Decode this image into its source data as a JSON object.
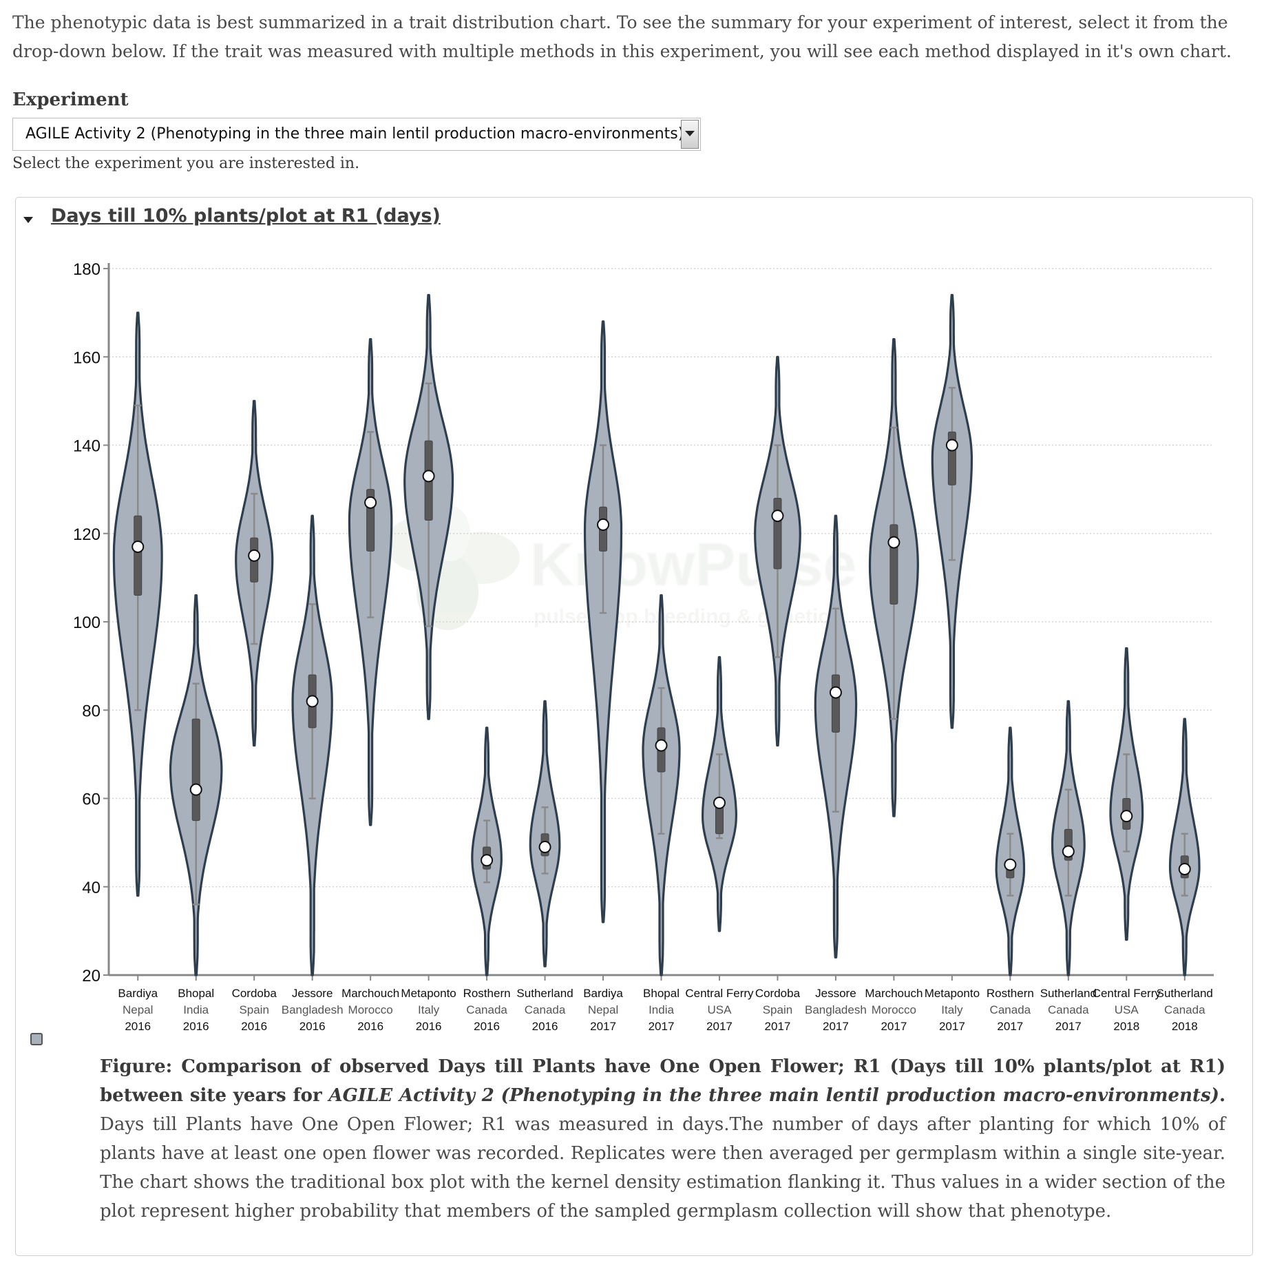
{
  "intro_text": "The phenotypic data is best summarized in a trait distribution chart. To see the summary for your experiment of interest, select it from the drop-down below. If the trait was measured with multiple methods in this experiment, you will see each method displayed in it's own chart.",
  "experiment": {
    "label": "Experiment",
    "selected": "AGILE Activity 2 (Phenotyping in the three main lentil production macro-environments)",
    "help": "Select the experiment you are insterested in."
  },
  "panel": {
    "title": "Days till 10% plants/plot at R1 (days)"
  },
  "watermark": {
    "title": "KnowPulse",
    "subtitle": "pulse crop breeding & genetics"
  },
  "colors": {
    "violin_fill": "#a9b1bd",
    "violin_stroke": "#2f3e4e",
    "box": "#595959"
  },
  "chart_data": {
    "type": "violin",
    "ylim": [
      20,
      180
    ],
    "yticks": [
      20,
      40,
      60,
      80,
      100,
      120,
      140,
      160,
      180
    ],
    "grid": true,
    "groups": [
      {
        "site": "Bardiya",
        "country": "Nepal",
        "year": "2016",
        "min": 38,
        "max": 170,
        "q1": 106,
        "q3": 124,
        "median": 117,
        "w_low": 80,
        "w_high": 149
      },
      {
        "site": "Bhopal",
        "country": "India",
        "year": "2016",
        "min": 20,
        "max": 106,
        "q1": 55,
        "q3": 78,
        "median": 62,
        "w_low": 36,
        "w_high": 86
      },
      {
        "site": "Cordoba",
        "country": "Spain",
        "year": "2016",
        "min": 72,
        "max": 150,
        "q1": 109,
        "q3": 119,
        "median": 115,
        "w_low": 95,
        "w_high": 129
      },
      {
        "site": "Jessore",
        "country": "Bangladesh",
        "year": "2016",
        "min": 20,
        "max": 124,
        "q1": 76,
        "q3": 88,
        "median": 82,
        "w_low": 60,
        "w_high": 104
      },
      {
        "site": "Marchouch",
        "country": "Morocco",
        "year": "2016",
        "min": 54,
        "max": 164,
        "q1": 116,
        "q3": 130,
        "median": 127,
        "w_low": 101,
        "w_high": 143
      },
      {
        "site": "Metaponto",
        "country": "Italy",
        "year": "2016",
        "min": 78,
        "max": 174,
        "q1": 123,
        "q3": 141,
        "median": 133,
        "w_low": 99,
        "w_high": 154
      },
      {
        "site": "Rosthern",
        "country": "Canada",
        "year": "2016",
        "min": 20,
        "max": 76,
        "q1": 44,
        "q3": 49,
        "median": 46,
        "w_low": 41,
        "w_high": 55
      },
      {
        "site": "Sutherland",
        "country": "Canada",
        "year": "2016",
        "min": 22,
        "max": 82,
        "q1": 47,
        "q3": 52,
        "median": 49,
        "w_low": 43,
        "w_high": 58
      },
      {
        "site": "Bardiya",
        "country": "Nepal",
        "year": "2017",
        "min": 32,
        "max": 168,
        "q1": 116,
        "q3": 126,
        "median": 122,
        "w_low": 102,
        "w_high": 140
      },
      {
        "site": "Bhopal",
        "country": "India",
        "year": "2017",
        "min": 20,
        "max": 106,
        "q1": 66,
        "q3": 76,
        "median": 72,
        "w_low": 52,
        "w_high": 85
      },
      {
        "site": "Central Ferry",
        "country": "USA",
        "year": "2017",
        "min": 30,
        "max": 92,
        "q1": 52,
        "q3": 60,
        "median": 59,
        "w_low": 51,
        "w_high": 70
      },
      {
        "site": "Cordoba",
        "country": "Spain",
        "year": "2017",
        "min": 72,
        "max": 160,
        "q1": 112,
        "q3": 128,
        "median": 124,
        "w_low": 92,
        "w_high": 140
      },
      {
        "site": "Jessore",
        "country": "Bangladesh",
        "year": "2017",
        "min": 24,
        "max": 124,
        "q1": 75,
        "q3": 88,
        "median": 84,
        "w_low": 57,
        "w_high": 103
      },
      {
        "site": "Marchouch",
        "country": "Morocco",
        "year": "2017",
        "min": 56,
        "max": 164,
        "q1": 104,
        "q3": 122,
        "median": 118,
        "w_low": 78,
        "w_high": 144
      },
      {
        "site": "Metaponto",
        "country": "Italy",
        "year": "2017",
        "min": 76,
        "max": 174,
        "q1": 131,
        "q3": 143,
        "median": 140,
        "w_low": 114,
        "w_high": 153
      },
      {
        "site": "Rosthern",
        "country": "Canada",
        "year": "2017",
        "min": 20,
        "max": 76,
        "q1": 42,
        "q3": 46,
        "median": 45,
        "w_low": 38,
        "w_high": 52
      },
      {
        "site": "Sutherland",
        "country": "Canada",
        "year": "2017",
        "min": 20,
        "max": 82,
        "q1": 46,
        "q3": 53,
        "median": 48,
        "w_low": 38,
        "w_high": 62
      },
      {
        "site": "Central Ferry",
        "country": "USA",
        "year": "2018",
        "min": 28,
        "max": 94,
        "q1": 53,
        "q3": 60,
        "median": 56,
        "w_low": 48,
        "w_high": 70
      },
      {
        "site": "Sutherland",
        "country": "Canada",
        "year": "2018",
        "min": 20,
        "max": 78,
        "q1": 42,
        "q3": 47,
        "median": 44,
        "w_low": 38,
        "w_high": 52
      }
    ]
  },
  "caption": {
    "head_prefix": "Figure: Comparison of observed Days till Plants have One Open Flower; R1 (Days till 10% plants/plot at R1) between site years for ",
    "head_experiment": "AGILE Activity 2 (Phenotyping in the three main lentil production macro-environments)",
    "head_suffix": ".",
    "body": " Days till Plants have One Open Flower; R1 was measured in days.The number of days after planting for which 10% of plants have at least one open flower was recorded. Replicates were then averaged per germplasm within a single site-year. The chart shows the traditional box plot with the kernel density estimation flanking it. Thus values in a wider section of the plot represent higher probability that members of the sampled germplasm collection will show that phenotype."
  }
}
